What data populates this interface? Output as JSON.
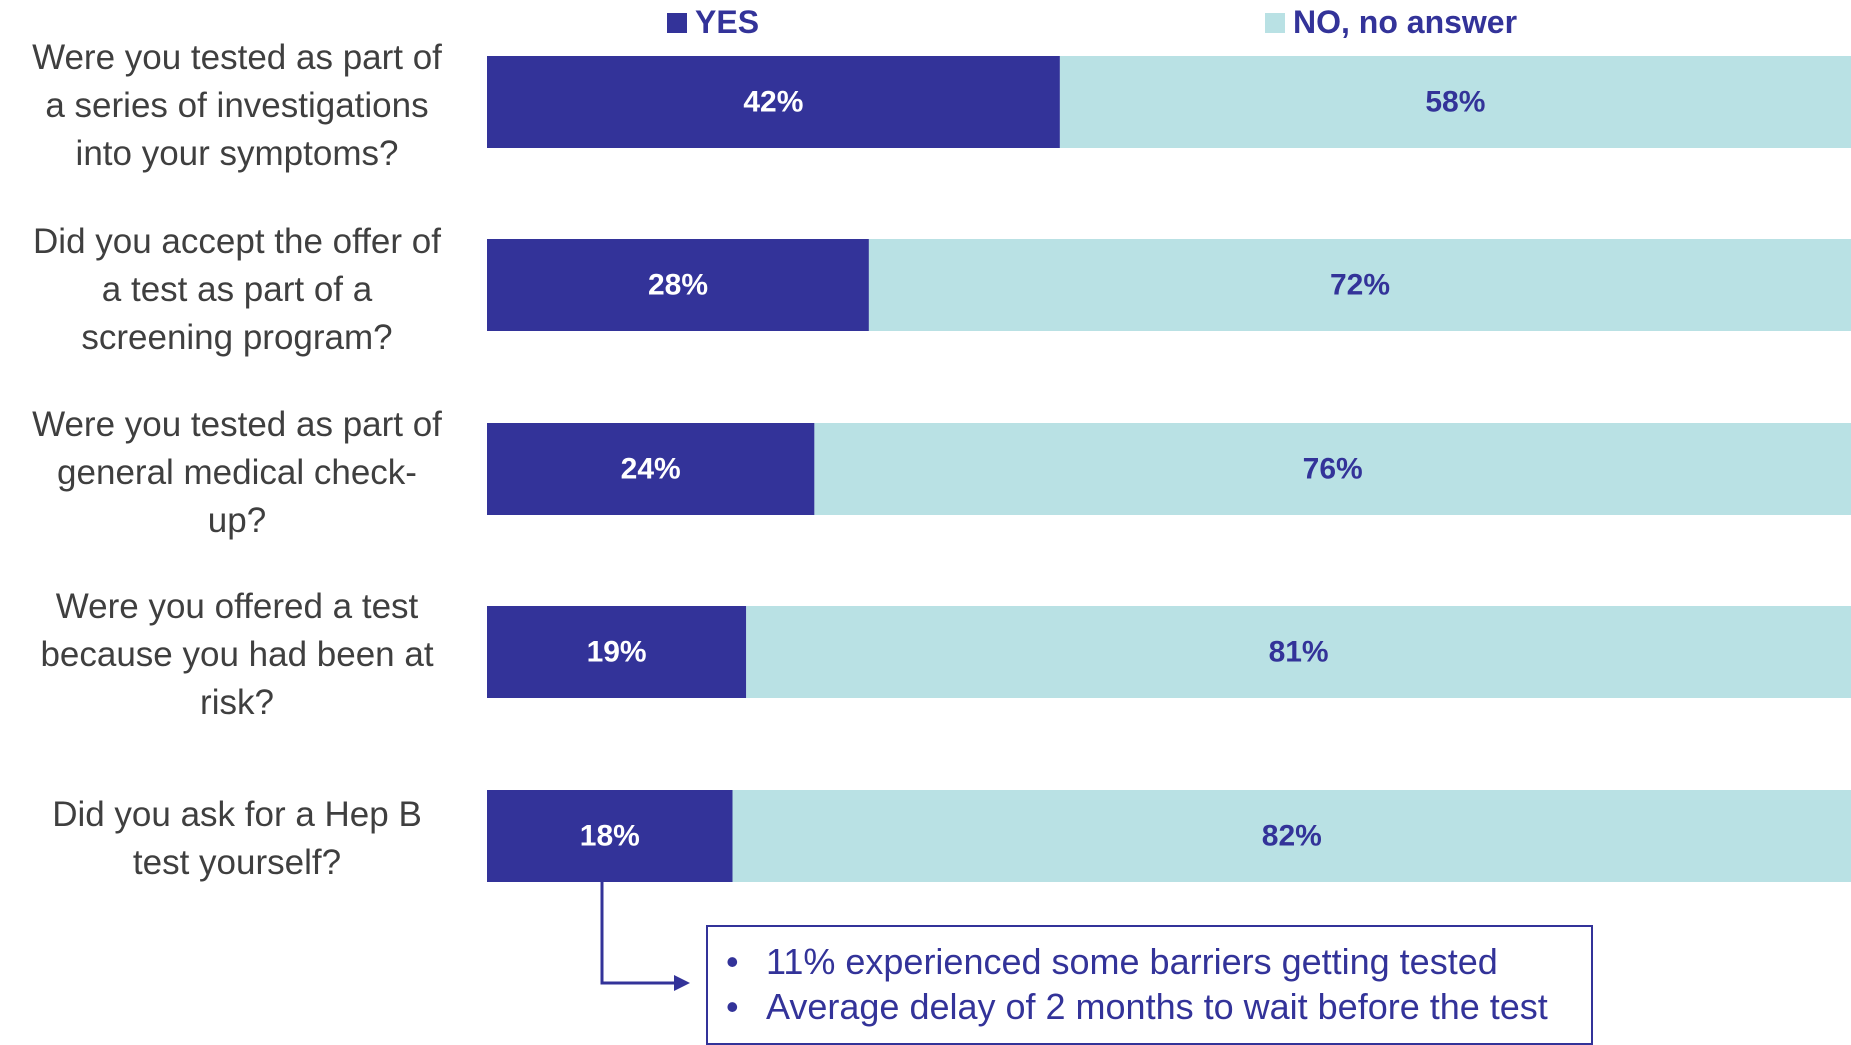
{
  "colors": {
    "yes": "#333399",
    "no": "#b9e1e4",
    "label_text": "#3f3f3f",
    "yes_value_text": "#ffffff",
    "no_value_text": "#333399",
    "annotation": "#333399"
  },
  "legend": {
    "yes": "YES",
    "no": "NO, no answer"
  },
  "chart_data": {
    "type": "bar",
    "orientation": "horizontal",
    "stacked": true,
    "percent": true,
    "categories": [
      "Were you tested as part of a series of investigations into your symptoms?",
      "Did you accept the offer of a test as part of a screening program?",
      "Were you tested as part of general medical check-up?",
      "Were you offered a test because you had been at risk?",
      "Did you ask for a Hep B test yourself?"
    ],
    "series": [
      {
        "name": "YES",
        "values": [
          42,
          28,
          24,
          19,
          18
        ],
        "labels": [
          "42%",
          "28%",
          "24%",
          "19%",
          "18%"
        ]
      },
      {
        "name": "NO, no answer",
        "values": [
          58,
          72,
          76,
          81,
          82
        ],
        "labels": [
          "58%",
          "72%",
          "76%",
          "81%",
          "82%"
        ]
      }
    ],
    "xlim": [
      0,
      100
    ],
    "grid": false,
    "legend_position": "top"
  },
  "questions": [
    {
      "lines": [
        "Were you tested as part of",
        "a series of investigations",
        "into your symptoms?"
      ]
    },
    {
      "lines": [
        "Did you accept the offer of",
        "a test as part of a",
        "screening program?"
      ]
    },
    {
      "lines": [
        "Were you tested as part of",
        "general medical check-",
        "up?"
      ]
    },
    {
      "lines": [
        "Were you offered a test",
        "because you had been at",
        "risk?"
      ]
    },
    {
      "lines": [
        "Did you ask for a Hep B",
        "test yourself?"
      ]
    }
  ],
  "annotation": {
    "bullet": "•",
    "items": [
      "11% experienced some barriers getting tested",
      "Average delay of 2 months to wait before the test"
    ]
  }
}
